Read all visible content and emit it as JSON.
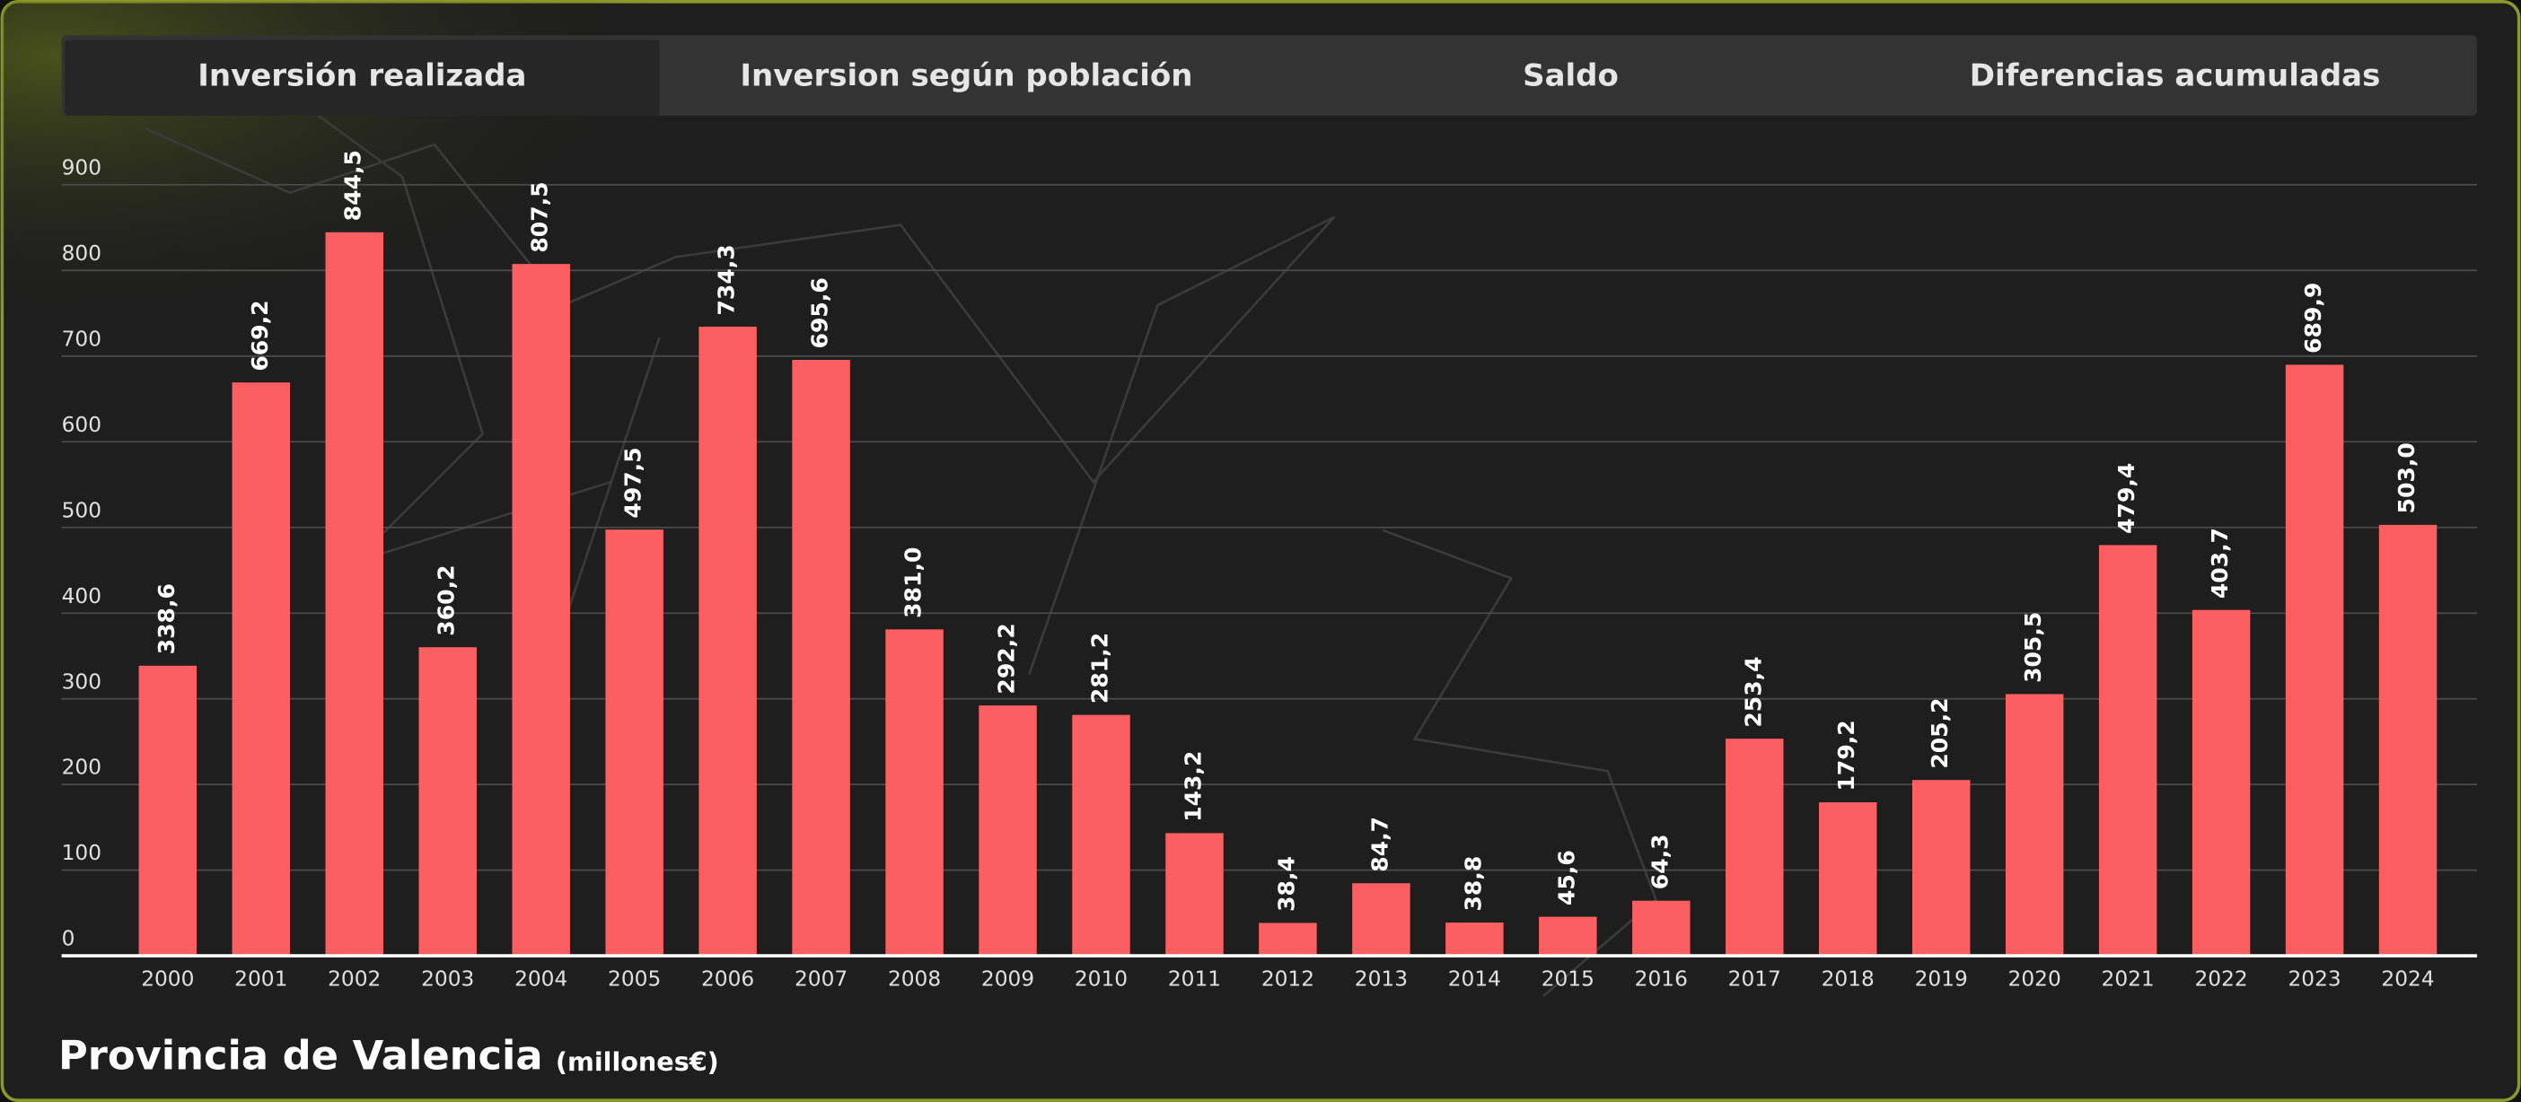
{
  "tabs": [
    "Inversión realizada",
    "Inversion según población",
    "Saldo",
    "Diferencias acumuladas"
  ],
  "chart_data": {
    "type": "bar",
    "title": "Provincia de Valencia",
    "subtitle": "(millones€)",
    "categories": [
      "2000",
      "2001",
      "2002",
      "2003",
      "2004",
      "2005",
      "2006",
      "2007",
      "2008",
      "2009",
      "2010",
      "2011",
      "2012",
      "2013",
      "2014",
      "2015",
      "2016",
      "2017",
      "2018",
      "2019",
      "2020",
      "2021",
      "2022",
      "2023",
      "2024"
    ],
    "values": [
      338.6,
      669.2,
      844.5,
      360.2,
      807.5,
      497.5,
      734.3,
      695.6,
      381.0,
      292.2,
      281.2,
      143.2,
      38.4,
      84.7,
      38.8,
      45.6,
      64.3,
      253.4,
      179.2,
      205.2,
      305.5,
      479.4,
      403.7,
      689.9,
      503.0
    ],
    "value_labels": [
      "338,6",
      "669,2",
      "844,5",
      "360,2",
      "807,5",
      "497,5",
      "734,3",
      "695,6",
      "381,0",
      "292,2",
      "281,2",
      "143,2",
      "38,4",
      "84,7",
      "38,8",
      "45,6",
      "64,3",
      "253,4",
      "179,2",
      "205,2",
      "305,5",
      "479,4",
      "403,7",
      "689,9",
      "503,0"
    ],
    "color": "#fc5f61",
    "ylim": [
      0,
      900
    ],
    "yticks": [
      0,
      100,
      200,
      300,
      400,
      500,
      600,
      700,
      800,
      900
    ],
    "grid": true
  }
}
